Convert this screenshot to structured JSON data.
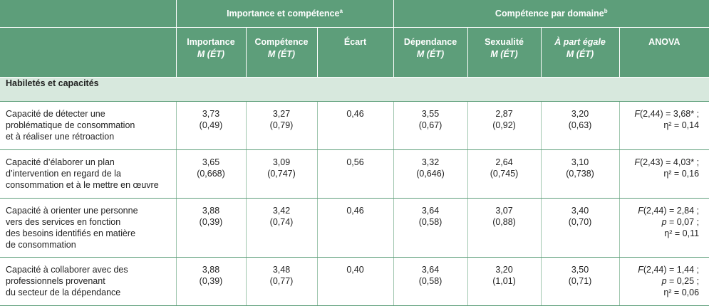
{
  "header": {
    "group1": "Importance et compétence",
    "group1_sup": "a",
    "group2": "Compétence par domaine",
    "group2_sup": "b",
    "columns": [
      {
        "label": "Importance",
        "sub": "M (ÉT)"
      },
      {
        "label": "Compétence",
        "sub": "M (ÉT)"
      },
      {
        "label": "Écart",
        "sub": ""
      },
      {
        "label": "Dépendance",
        "sub": "M (ÉT)"
      },
      {
        "label": "Sexualité",
        "sub": "M (ÉT)"
      },
      {
        "label": "À part égale",
        "sub": "M (ÉT)"
      },
      {
        "label": "ANOVA",
        "sub": ""
      }
    ]
  },
  "section_title": "Habiletés et capacités",
  "rows": [
    {
      "label": [
        "Capacité de détecter une",
        "problématique de consommation",
        "et à réaliser une rétroaction"
      ],
      "importance": [
        "3,73",
        "(0,49)"
      ],
      "competence": [
        "3,27",
        "(0,79)"
      ],
      "ecart": "0,46",
      "dependance": [
        "3,55",
        "(0,67)"
      ],
      "sexualite": [
        "2,87",
        "(0,92)"
      ],
      "part_egale": [
        "3,20",
        "(0,63)"
      ],
      "anova": [
        "F(2,44) = 3,68* ;",
        "η² = 0,14"
      ]
    },
    {
      "label": [
        "Capacité d’élaborer un plan",
        "d’intervention en regard de la",
        "consommation et à le mettre en œuvre"
      ],
      "importance": [
        "3,65",
        "(0,668)"
      ],
      "competence": [
        "3,09",
        "(0,747)"
      ],
      "ecart": "0,56",
      "dependance": [
        "3,32",
        "(0,646)"
      ],
      "sexualite": [
        "2,64",
        "(0,745)"
      ],
      "part_egale": [
        "3,10",
        "(0,738)"
      ],
      "anova": [
        "F(2,43) = 4,03* ;",
        "η² = 0,16"
      ]
    },
    {
      "label": [
        "Capacité à orienter une personne",
        "vers des services en fonction",
        "des besoins identifiés en matière",
        "de consommation"
      ],
      "importance": [
        "3,88",
        "(0,39)"
      ],
      "competence": [
        "3,42",
        "(0,74)"
      ],
      "ecart": "0,46",
      "dependance": [
        "3,64",
        "(0,58)"
      ],
      "sexualite": [
        "3,07",
        "(0,88)"
      ],
      "part_egale": [
        "3,40",
        "(0,70)"
      ],
      "anova": [
        "F(2,44) = 2,84 ;",
        "p = 0,07 ;",
        "η² = 0,11"
      ]
    },
    {
      "label": [
        "Capacité à collaborer avec des",
        "professionnels provenant",
        "du secteur de la dépendance"
      ],
      "importance": [
        "3,88",
        "(0,39)"
      ],
      "competence": [
        "3,48",
        "(0,77)"
      ],
      "ecart": "0,40",
      "dependance": [
        "3,64",
        "(0,58)"
      ],
      "sexualite": [
        "3,20",
        "(1,01)"
      ],
      "part_egale": [
        "3,50",
        "(0,71)"
      ],
      "anova": [
        "F(2,44) = 1,44 ;",
        "p = 0,25 ;",
        "η² = 0,06"
      ]
    }
  ],
  "colors": {
    "header_bg": "#5d9e7a",
    "section_bg": "#d7e8dd"
  }
}
